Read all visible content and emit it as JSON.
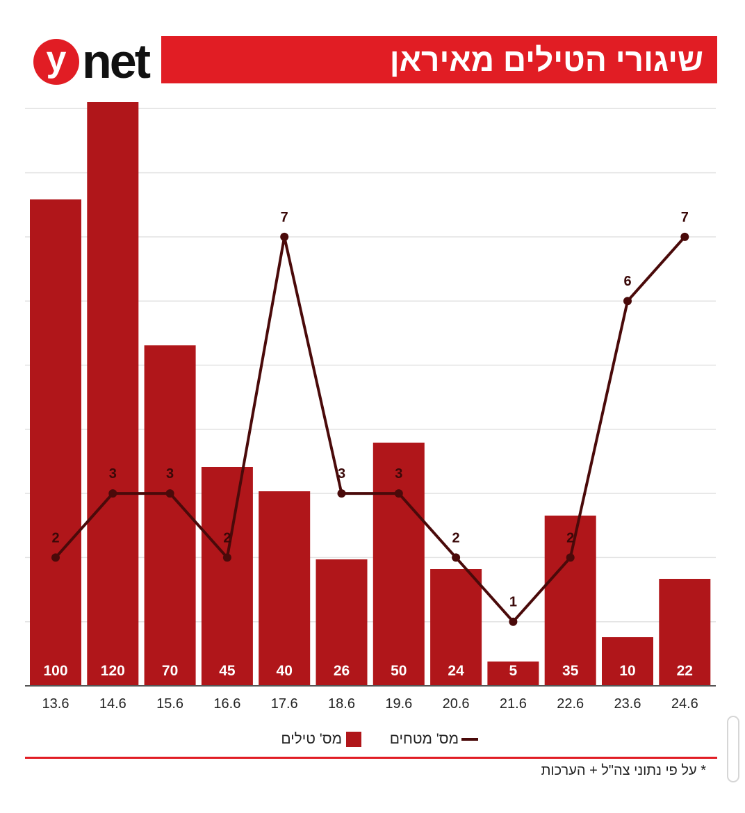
{
  "header": {
    "logo_mark": "y",
    "logo_text": "net",
    "title": "שיגורי הטילים מאיראן"
  },
  "colors": {
    "brand_red": "#e11d24",
    "bar_red": "#b0161a",
    "line_dark": "#4a0a0a",
    "grid": "#e2e2e2"
  },
  "chart_data": {
    "type": "bar",
    "categories": [
      "13.6",
      "14.6",
      "15.6",
      "16.6",
      "17.6",
      "18.6",
      "19.6",
      "20.6",
      "21.6",
      "22.6",
      "23.6",
      "24.6"
    ],
    "series": [
      {
        "name": "מס' טילים",
        "kind": "bar",
        "values": [
          100,
          120,
          70,
          45,
          40,
          26,
          50,
          24,
          5,
          35,
          10,
          22
        ]
      },
      {
        "name": "מס' מטחים",
        "kind": "line",
        "values": [
          2,
          3,
          3,
          2,
          7,
          3,
          3,
          2,
          1,
          2,
          6,
          7
        ]
      }
    ],
    "bar_ylim": [
      0,
      120
    ],
    "line_ylim": [
      0,
      10
    ],
    "grid": true
  },
  "legend": {
    "line_label": "מס' מטחים",
    "bar_label": "מס' טילים"
  },
  "footnote": "* על פי נתוני צה\"ל + הערכות"
}
